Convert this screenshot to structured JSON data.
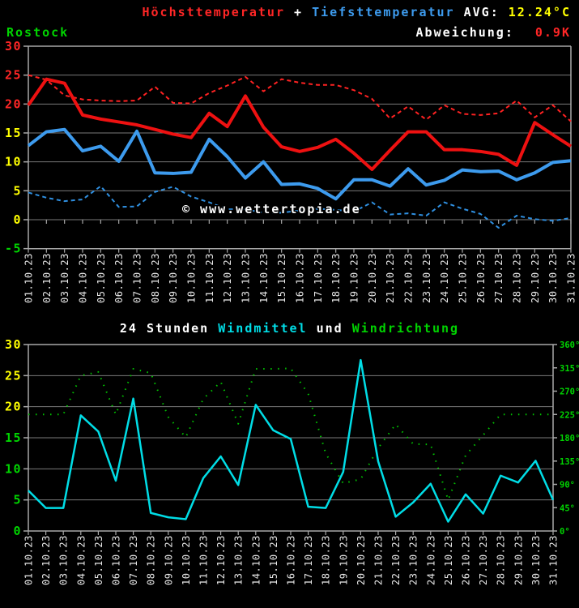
{
  "header": {
    "series_high_label": "Höchsttemperatur",
    "plus": " + ",
    "series_low_label": "Tiefsttemperatur",
    "avg_label": " AVG: ",
    "avg_value": "12.24°C",
    "station": "Rostock",
    "deviation_label": "Abweichung:",
    "deviation_value": "0.9K"
  },
  "watermark": "© www.wettertopia.de",
  "wind_title": {
    "prefix": "24 Stunden ",
    "windmittel": "Windmittel",
    "und": " und ",
    "windrichtung": "Windrichtung"
  },
  "colors": {
    "red": "#ff2626",
    "red_line": "#ee1111",
    "red_dashed": "#ff2222",
    "blue": "#3d9bee",
    "blue_line": "#3d9bee",
    "blue_dashed": "#2f8fe0",
    "cyan": "#00dde6",
    "green": "#00d400",
    "green_dots": "#00c400",
    "yellow": "#ffff00",
    "white": "#ffffff",
    "grid": "#7a7a7a",
    "axis": "#a8a8a8",
    "date_label": "#e8e8e8",
    "background": "#000000"
  },
  "chart_data": [
    {
      "type": "line",
      "title": "Höchsttemperatur + Tiefsttemperatur",
      "station": "Rostock",
      "avg": "12.24°C",
      "deviation": "0.9K",
      "x": [
        "01.10.23",
        "02.10.23",
        "03.10.23",
        "04.10.23",
        "05.10.23",
        "06.10.23",
        "07.10.23",
        "08.10.23",
        "09.10.23",
        "10.10.23",
        "11.10.23",
        "12.10.23",
        "13.10.23",
        "14.10.23",
        "15.10.23",
        "16.10.23",
        "17.10.23",
        "18.10.23",
        "19.10.23",
        "20.10.23",
        "21.10.23",
        "22.10.23",
        "23.10.23",
        "24.10.23",
        "25.10.23",
        "26.10.23",
        "27.10.23",
        "28.10.23",
        "29.10.23",
        "30.10.23",
        "31.10.23"
      ],
      "ylim": [
        -5,
        30
      ],
      "yticks": [
        {
          "v": 30,
          "color": "#ff2626"
        },
        {
          "v": 25,
          "color": "#ff2626"
        },
        {
          "v": 20,
          "color": "#ff2626"
        },
        {
          "v": 15,
          "color": "#ffff00"
        },
        {
          "v": 10,
          "color": "#ffff00"
        },
        {
          "v": 5,
          "color": "#ffff00"
        },
        {
          "v": 0,
          "color": "#ffff00"
        },
        {
          "v": -5,
          "color": "#00d400"
        }
      ],
      "gridlines": [
        0,
        5,
        10,
        15,
        20,
        25
      ],
      "series": [
        {
          "name": "Höchsttemperatur (rot, gestrichelt)",
          "style": "dashed",
          "color": "#ff2222",
          "width": 2,
          "values": [
            25.0,
            24.2,
            21.5,
            20.8,
            20.6,
            20.5,
            20.6,
            23.0,
            20.2,
            20.1,
            21.9,
            23.2,
            24.7,
            22.2,
            24.3,
            23.7,
            23.3,
            23.3,
            22.4,
            20.9,
            17.5,
            19.6,
            17.3,
            19.8,
            18.3,
            18.1,
            18.4,
            20.6,
            17.7,
            19.8,
            17.0
          ]
        },
        {
          "name": "Tiefsttemperatur (blau, gestrichelt)",
          "style": "dashed",
          "color": "#2f8fe0",
          "width": 2,
          "values": [
            4.7,
            3.8,
            3.2,
            3.5,
            5.8,
            2.2,
            2.3,
            4.8,
            5.7,
            4.0,
            3.0,
            1.8,
            1.8,
            1.2,
            1.2,
            1.6,
            1.9,
            1.7,
            1.4,
            3.0,
            0.9,
            1.1,
            0.7,
            3.0,
            1.9,
            1.0,
            -1.4,
            0.7,
            0.1,
            -0.2,
            0.3
          ]
        },
        {
          "name": "Höchsttemperatur",
          "style": "solid",
          "color": "#ee1111",
          "width": 4,
          "values": [
            19.8,
            24.3,
            23.6,
            18.1,
            17.4,
            16.9,
            16.4,
            15.6,
            14.8,
            14.2,
            18.4,
            16.1,
            21.4,
            16.0,
            12.6,
            11.8,
            12.5,
            13.9,
            11.5,
            8.7,
            12.0,
            15.2,
            15.2,
            12.1,
            12.1,
            11.8,
            11.3,
            9.4,
            16.8,
            14.7,
            12.7
          ]
        },
        {
          "name": "Tiefsttemperatur",
          "style": "solid",
          "color": "#3d9bee",
          "width": 4,
          "values": [
            12.8,
            15.2,
            15.6,
            11.9,
            12.7,
            10.1,
            15.3,
            8.1,
            8.0,
            8.2,
            13.9,
            10.9,
            7.2,
            10.0,
            6.1,
            6.2,
            5.4,
            3.6,
            6.9,
            6.9,
            5.8,
            8.8,
            6.0,
            6.8,
            8.6,
            8.3,
            8.4,
            6.9,
            8.1,
            9.9,
            10.2
          ]
        }
      ]
    },
    {
      "type": "line",
      "title": "24 Stunden Windmittel und Windrichtung",
      "x": [
        "01.10.23",
        "02.10.23",
        "03.10.23",
        "04.10.23",
        "05.10.23",
        "06.10.23",
        "07.10.23",
        "08.10.23",
        "09.10.23",
        "10.10.23",
        "11.10.23",
        "12.10.23",
        "13.10.23",
        "14.10.23",
        "15.10.23",
        "16.10.23",
        "17.10.23",
        "18.10.23",
        "19.10.23",
        "20.10.23",
        "21.10.23",
        "22.10.23",
        "23.10.23",
        "24.10.23",
        "25.10.23",
        "26.10.23",
        "27.10.23",
        "28.10.23",
        "29.10.23",
        "30.10.23",
        "31.10.23"
      ],
      "left_axis": {
        "range": [
          0,
          30
        ],
        "ticks": [
          {
            "v": 30,
            "color": "#ffff00"
          },
          {
            "v": 25,
            "color": "#ffff00"
          },
          {
            "v": 20,
            "color": "#ffff00"
          },
          {
            "v": 15,
            "color": "#00d400"
          },
          {
            "v": 10,
            "color": "#00d400"
          },
          {
            "v": 5,
            "color": "#00d400"
          },
          {
            "v": 0,
            "color": "#00d400"
          }
        ]
      },
      "right_axis": {
        "range": [
          0,
          360
        ],
        "unit": "°",
        "ticks": [
          {
            "deg": 360,
            "label": "360°"
          },
          {
            "deg": 315,
            "label": "315°"
          },
          {
            "deg": 270,
            "label": "270°"
          },
          {
            "deg": 225,
            "label": "225°"
          },
          {
            "deg": 180,
            "label": "180°"
          },
          {
            "deg": 135,
            "label": "135°"
          },
          {
            "deg": 90,
            "label": "90°"
          },
          {
            "deg": 45,
            "label": "45°"
          },
          {
            "deg": 0,
            "label": "0°"
          }
        ],
        "color": "#00d400"
      },
      "gridlines": [
        5,
        10,
        15,
        20,
        25
      ],
      "series": [
        {
          "name": "Windmittel",
          "axis": "left",
          "style": "solid",
          "color": "#00dde6",
          "width": 2.5,
          "values": [
            6.5,
            3.7,
            3.7,
            18.6,
            16.0,
            8.1,
            21.3,
            2.9,
            2.2,
            1.9,
            8.5,
            12.0,
            7.4,
            20.3,
            16.2,
            14.8,
            3.9,
            3.7,
            9.5,
            27.5,
            11.2,
            2.3,
            4.6,
            7.6,
            1.5,
            5.9,
            2.8,
            8.9,
            7.8,
            11.3,
            5.0
          ]
        },
        {
          "name": "Windrichtung",
          "axis": "right",
          "style": "dotted",
          "color": "#00c400",
          "width": 2,
          "values_deg": [
            225,
            225,
            225,
            300,
            307,
            225,
            313,
            305,
            220,
            181,
            255,
            288,
            207,
            313,
            313,
            314,
            265,
            150,
            92,
            100,
            160,
            206,
            168,
            167,
            60,
            146,
            185,
            225,
            225,
            225,
            225
          ]
        }
      ]
    }
  ]
}
